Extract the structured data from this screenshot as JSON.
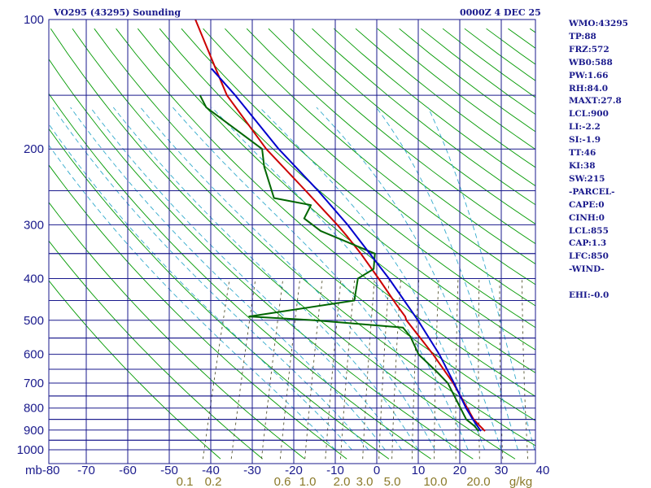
{
  "header": {
    "station": "VO295 (43295) Sounding",
    "time": "0000Z  4 DEC 25"
  },
  "indices": [
    "WMO:43295",
    "TP:88",
    "FRZ:572",
    "WB0:588",
    "PW:1.66",
    "RH:84.0",
    "MAXT:27.8",
    "LCL:900",
    "LI:-2.2",
    "SI:-1.9",
    "TT:46",
    "KI:38",
    "SW:215",
    "-PARCEL-",
    "CAPE:0",
    "CINH:0",
    "LCL:855",
    "CAP:1.3",
    "LFC:850",
    "-WIND-",
    "",
    "EHI:-0.0"
  ],
  "colors": {
    "grid": "#1a1a8c",
    "dry_adiabat": "#009900",
    "moist_adiabat": "#33aacc",
    "mixing_ratio": "#555533",
    "temperature": "#cc0000",
    "dewpoint": "#006600",
    "parcel": "#0000cc",
    "text": "#1a1a8c",
    "mixing_label": "#8b7a2a"
  },
  "chart_data": {
    "type": "line",
    "chart_kind": "skew-T log-P sounding",
    "y_scale": "log",
    "ylim": [
      1000,
      100
    ],
    "xlim": [
      -80,
      40
    ],
    "pressure_ticks": [
      100,
      200,
      300,
      400,
      500,
      600,
      700,
      800,
      900,
      1000
    ],
    "temperature_ticks": [
      -80,
      -70,
      -60,
      -50,
      -40,
      -30,
      -20,
      -10,
      0,
      10,
      20,
      30,
      40
    ],
    "temperature_tick_labels": [
      "mb-80",
      "-70",
      "-60",
      "-50",
      "-40",
      "-30",
      "-20",
      "-10",
      "0",
      "10",
      "20",
      "30",
      "40"
    ],
    "mixing_ratio_labels": [
      "0.1",
      "0.2",
      "0.6",
      "1.0",
      "2.0",
      "3.0",
      "5.0",
      "10.0",
      "20.0",
      "g/kg"
    ],
    "unit_label_left": "mb",
    "series": [
      {
        "key": "temperature",
        "points": [
          {
            "p": 905,
            "t": 24.5
          },
          {
            "p": 880,
            "t": 22.8
          },
          {
            "p": 850,
            "t": 20.8
          },
          {
            "p": 700,
            "t": 12.8
          },
          {
            "p": 600,
            "t": 5.5
          },
          {
            "p": 560,
            "t": 2.0
          },
          {
            "p": 500,
            "t": -3.8
          },
          {
            "p": 490,
            "t": -4.4
          },
          {
            "p": 460,
            "t": -7.5
          },
          {
            "p": 400,
            "t": -14.0
          },
          {
            "p": 350,
            "t": -20.4
          },
          {
            "p": 320,
            "t": -25.0
          },
          {
            "p": 300,
            "t": -28.5
          },
          {
            "p": 250,
            "t": -39.0
          },
          {
            "p": 200,
            "t": -52.0
          },
          {
            "p": 150,
            "t": -66.0
          },
          {
            "p": 130,
            "t": -71.0
          },
          {
            "p": 100,
            "t": -80.0
          }
        ]
      },
      {
        "key": "dewpoint",
        "points": [
          {
            "p": 905,
            "t": 23.0
          },
          {
            "p": 880,
            "t": 21.5
          },
          {
            "p": 850,
            "t": 19.0
          },
          {
            "p": 700,
            "t": 11.5
          },
          {
            "p": 660,
            "t": 8.0
          },
          {
            "p": 600,
            "t": 2.0
          },
          {
            "p": 560,
            "t": -0.5
          },
          {
            "p": 545,
            "t": -1.5
          },
          {
            "p": 520,
            "t": -4.0
          },
          {
            "p": 500,
            "t": -26.0
          },
          {
            "p": 490,
            "t": -42.0
          },
          {
            "p": 450,
            "t": -18.0
          },
          {
            "p": 400,
            "t": -19.0
          },
          {
            "p": 380,
            "t": -16.0
          },
          {
            "p": 350,
            "t": -17.0
          },
          {
            "p": 310,
            "t": -32.0
          },
          {
            "p": 290,
            "t": -37.0
          },
          {
            "p": 270,
            "t": -36.5
          },
          {
            "p": 260,
            "t": -46.0
          },
          {
            "p": 220,
            "t": -51.0
          },
          {
            "p": 200,
            "t": -53.0
          },
          {
            "p": 160,
            "t": -70.0
          },
          {
            "p": 150,
            "t": -72.5
          }
        ]
      },
      {
        "key": "parcel",
        "points": [
          {
            "p": 905,
            "t": 23.5
          },
          {
            "p": 850,
            "t": 20.6
          },
          {
            "p": 800,
            "t": 18.0
          },
          {
            "p": 700,
            "t": 13.0
          },
          {
            "p": 600,
            "t": 7.0
          },
          {
            "p": 500,
            "t": -1.0
          },
          {
            "p": 400,
            "t": -11.5
          },
          {
            "p": 300,
            "t": -26.0
          },
          {
            "p": 250,
            "t": -36.0
          },
          {
            "p": 200,
            "t": -49.0
          },
          {
            "p": 150,
            "t": -64.0
          },
          {
            "p": 130,
            "t": -72.0
          }
        ]
      }
    ]
  }
}
